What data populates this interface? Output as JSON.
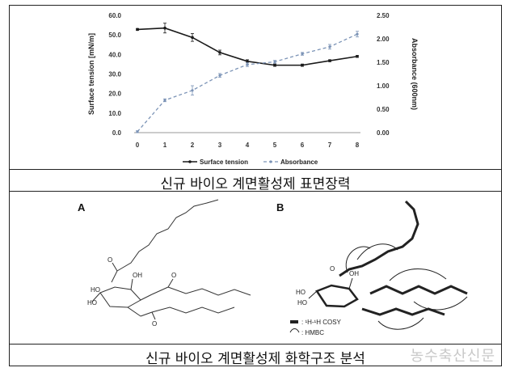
{
  "captions": {
    "top": "신규 바이오 계면활성제 표면장력",
    "bottom": "신규 바이오 계면활성제 화학구조 분석"
  },
  "structure": {
    "panel_a_label": "A",
    "panel_b_label": "B",
    "legend_cosy": ": ¹H-¹H COSY",
    "legend_hmbc": ": HMBC"
  },
  "watermark": "농수축산신문",
  "colors": {
    "surface_tension": "#1a1a1a",
    "absorbance": "#7b93b6"
  },
  "chart_data": {
    "type": "line",
    "x": [
      0,
      1,
      2,
      3,
      4,
      5,
      6,
      7,
      8
    ],
    "xticks": [
      "0",
      "1",
      "2",
      "3",
      "4",
      "5",
      "6",
      "7",
      "8"
    ],
    "ylabel": "Surface tension [mN/m]",
    "y2label": "Absorbance (600nm)",
    "ylim": [
      0,
      60
    ],
    "y2lim": [
      0,
      2.5
    ],
    "yticks": [
      "0.0",
      "10.0",
      "20.0",
      "30.0",
      "40.0",
      "50.0",
      "60.0"
    ],
    "y2ticks": [
      "0.00",
      "0.50",
      "1.00",
      "1.50",
      "2.00",
      "2.50"
    ],
    "legend_position": "bottom",
    "series": [
      {
        "name": "Surface tension",
        "axis": "left",
        "style": "solid",
        "values": [
          52.8,
          53.5,
          48.7,
          41.0,
          36.5,
          34.5,
          34.5,
          36.8,
          39.0
        ],
        "errors": [
          0.5,
          2.5,
          2.0,
          1.2,
          0.8,
          0.6,
          0.6,
          0.5,
          0.5
        ]
      },
      {
        "name": "Absorbance",
        "axis": "right",
        "style": "dashed",
        "values": [
          0.02,
          0.69,
          0.9,
          1.22,
          1.45,
          1.51,
          1.68,
          1.83,
          2.1
        ],
        "errors": [
          0.02,
          0.03,
          0.1,
          0.04,
          0.04,
          0.03,
          0.03,
          0.05,
          0.06
        ]
      }
    ]
  }
}
